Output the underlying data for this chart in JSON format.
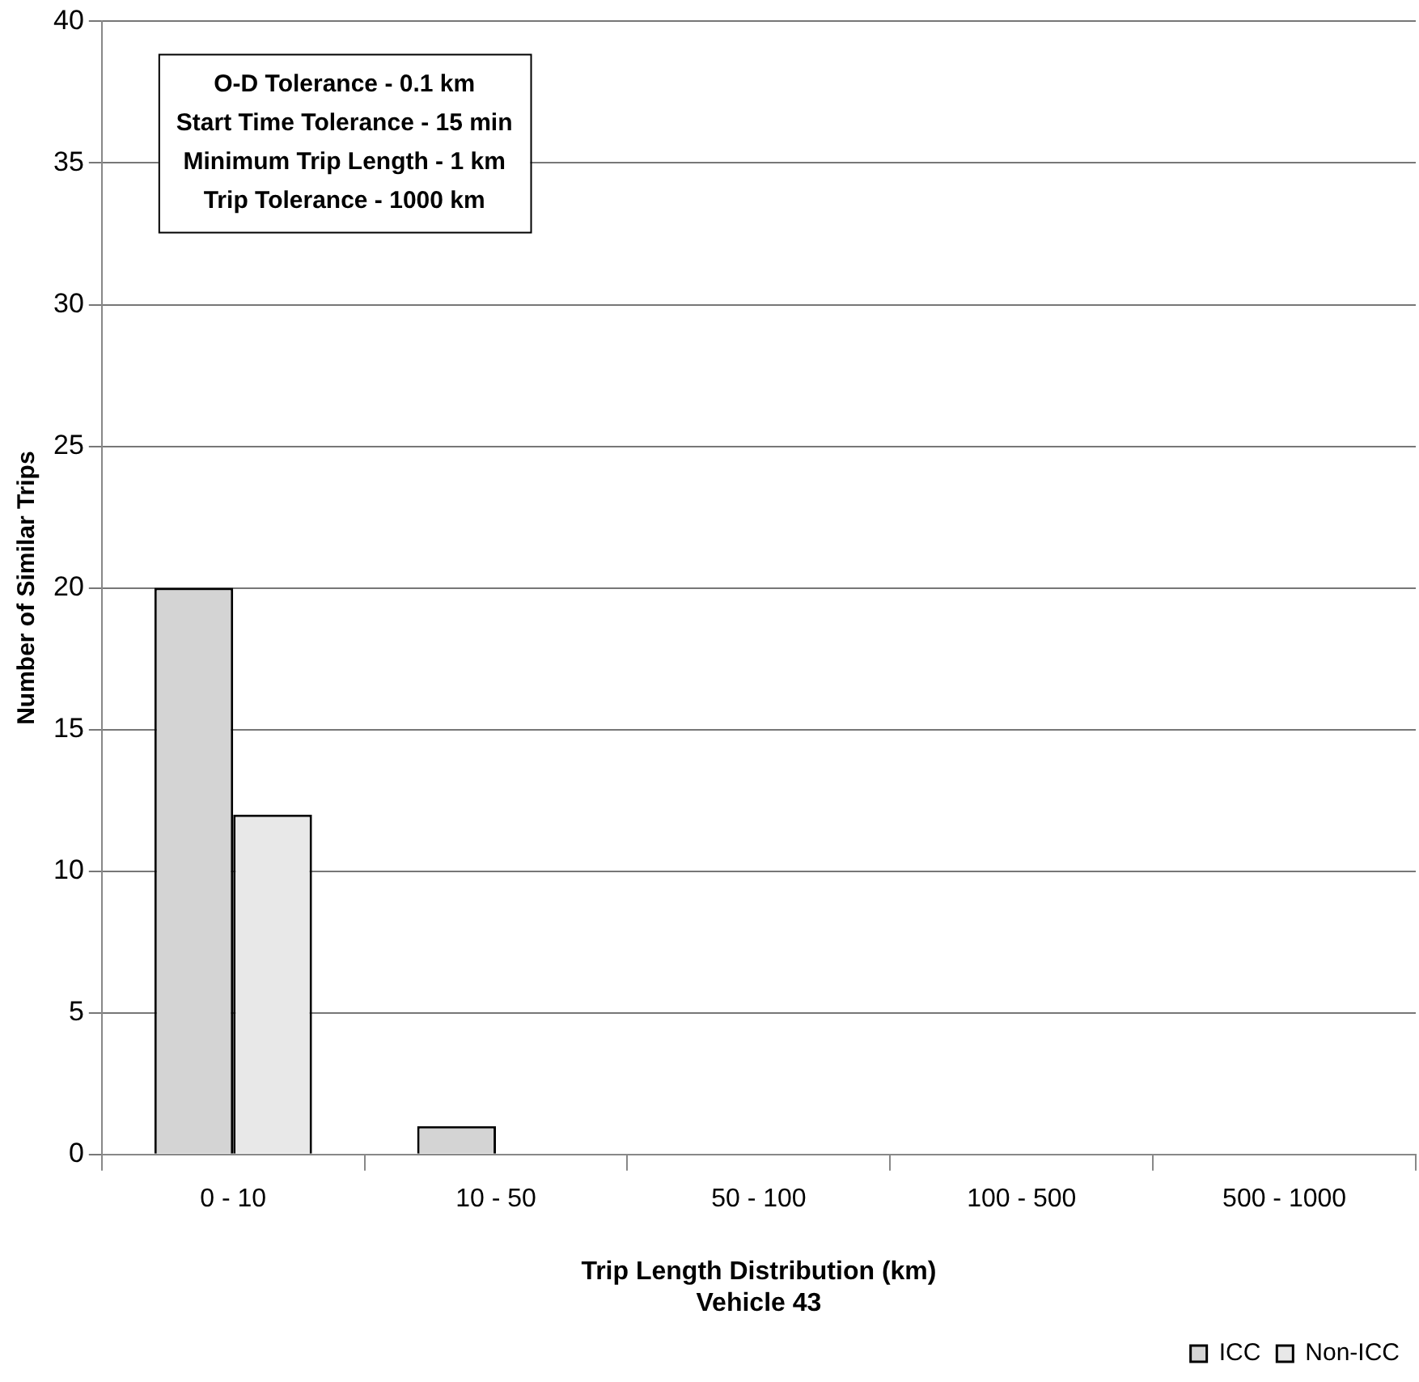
{
  "chart_data": {
    "type": "bar",
    "xlabel": "Trip Length Distribution (km)\nVehicle 43",
    "ylabel": "Number of Similar Trips",
    "categories": [
      "0 - 10",
      "10 - 50",
      "50 - 100",
      "100 - 500",
      "500 - 1000"
    ],
    "series": [
      {
        "name": "ICC",
        "color": "#d4d4d4",
        "values": [
          20,
          1,
          0,
          0,
          0
        ]
      },
      {
        "name": "Non-ICC",
        "color": "#e8e8e8",
        "values": [
          12,
          0,
          0,
          0,
          0
        ]
      }
    ],
    "ylim": [
      0,
      40
    ],
    "yticks": [
      0,
      5,
      10,
      15,
      20,
      25,
      30,
      35,
      40
    ],
    "grid": "y",
    "legend": "bottom right",
    "annotations": [
      "O-D Tolerance - 0.1 km",
      "Start Time Tolerance - 15 min",
      "Minimum Trip Length - 1 km",
      "Trip Tolerance - 1000 km"
    ]
  }
}
